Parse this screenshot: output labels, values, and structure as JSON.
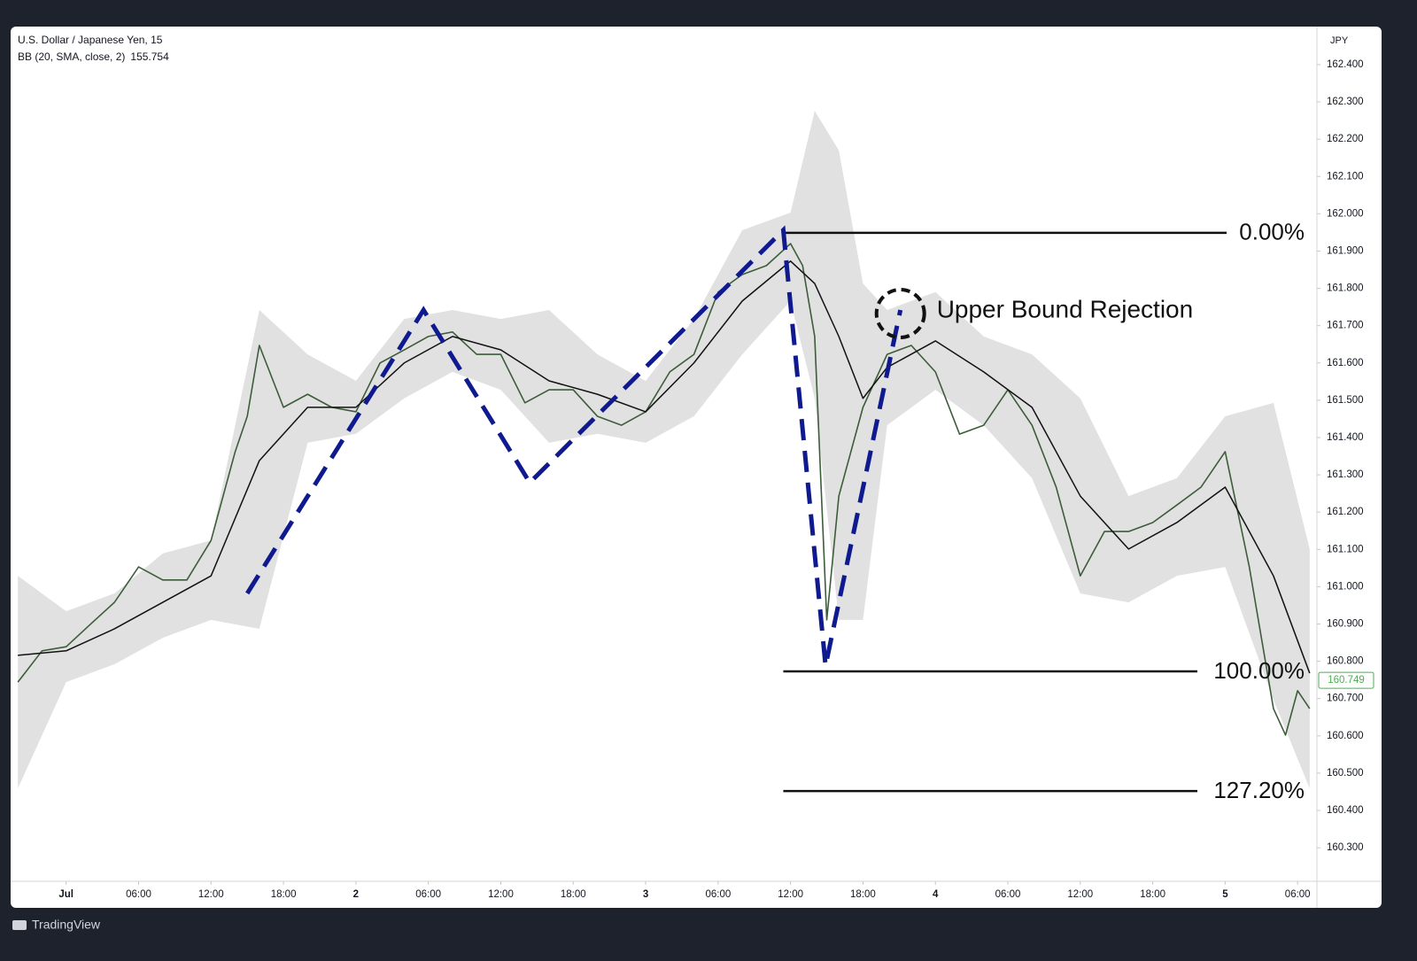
{
  "chart_data": {
    "type": "line",
    "title": "U.S. Dollar / Japanese Yen, 15",
    "indicator": "BB (20, SMA, close, 2)",
    "indicator_value": 155.754,
    "y_unit": "JPY",
    "last_price": 160.749,
    "brand": "TradingView",
    "grid": false,
    "xlim": [
      -4.6,
      103.6
    ],
    "ylim": [
      160.21,
      162.502
    ],
    "xticks": [
      {
        "value": 0,
        "label": "Jul"
      },
      {
        "value": 6,
        "label": "06:00"
      },
      {
        "value": 12,
        "label": "12:00"
      },
      {
        "value": 18,
        "label": "18:00"
      },
      {
        "value": 24,
        "label": "2"
      },
      {
        "value": 30,
        "label": "06:00"
      },
      {
        "value": 36,
        "label": "12:00"
      },
      {
        "value": 42,
        "label": "18:00"
      },
      {
        "value": 48,
        "label": "3"
      },
      {
        "value": 54,
        "label": "06:00"
      },
      {
        "value": 60,
        "label": "12:00"
      },
      {
        "value": 66,
        "label": "18:00"
      },
      {
        "value": 72,
        "label": "4"
      },
      {
        "value": 78,
        "label": "06:00"
      },
      {
        "value": 84,
        "label": "12:00"
      },
      {
        "value": 90,
        "label": "18:00"
      },
      {
        "value": 96,
        "label": "5"
      },
      {
        "value": 102,
        "label": "06:00"
      }
    ],
    "yticks": [
      {
        "value": 160.3,
        "label": "160.300"
      },
      {
        "value": 160.4,
        "label": "160.400"
      },
      {
        "value": 160.5,
        "label": "160.500"
      },
      {
        "value": 160.6,
        "label": "160.600"
      },
      {
        "value": 160.7,
        "label": "160.700"
      },
      {
        "value": 160.8,
        "label": "160.800"
      },
      {
        "value": 160.9,
        "label": "160.900"
      },
      {
        "value": 161.0,
        "label": "161.000"
      },
      {
        "value": 161.1,
        "label": "161.100"
      },
      {
        "value": 161.2,
        "label": "161.200"
      },
      {
        "value": 161.3,
        "label": "161.300"
      },
      {
        "value": 161.4,
        "label": "161.400"
      },
      {
        "value": 161.5,
        "label": "161.500"
      },
      {
        "value": 161.6,
        "label": "161.600"
      },
      {
        "value": 161.7,
        "label": "161.700"
      },
      {
        "value": 161.8,
        "label": "161.800"
      },
      {
        "value": 161.9,
        "label": "161.900"
      },
      {
        "value": 162.0,
        "label": "162.000"
      },
      {
        "value": 162.1,
        "label": "162.100"
      },
      {
        "value": 162.2,
        "label": "162.200"
      },
      {
        "value": 162.3,
        "label": "162.300"
      },
      {
        "value": 162.4,
        "label": "162.400"
      }
    ],
    "band": {
      "color": "#e1e1e1",
      "x": [
        -4,
        0,
        4,
        8,
        12,
        16,
        20,
        24,
        28,
        32,
        36,
        40,
        44,
        48,
        52,
        56,
        60,
        62,
        64,
        66,
        68,
        72,
        76,
        80,
        84,
        88,
        92,
        96,
        100,
        103
      ],
      "upper": [
        161.029,
        160.934,
        160.982,
        161.089,
        161.124,
        161.742,
        161.623,
        161.552,
        161.718,
        161.742,
        161.718,
        161.742,
        161.623,
        161.552,
        161.718,
        161.956,
        162.003,
        162.276,
        162.17,
        161.813,
        161.742,
        161.79,
        161.671,
        161.623,
        161.505,
        161.243,
        161.291,
        161.457,
        161.493,
        161.101
      ],
      "lower": [
        160.459,
        160.744,
        160.792,
        160.863,
        160.911,
        160.887,
        161.386,
        161.41,
        161.505,
        161.576,
        161.528,
        161.386,
        161.41,
        161.386,
        161.457,
        161.623,
        161.766,
        161.505,
        160.911,
        160.911,
        161.433,
        161.528,
        161.433,
        161.291,
        160.982,
        160.958,
        161.029,
        161.053,
        160.697,
        160.459
      ]
    },
    "series": [
      {
        "color": "#3d5c3a",
        "width": 1.6,
        "x": [
          -4,
          -2,
          0,
          2,
          4,
          6,
          8,
          10,
          12,
          14,
          15,
          16,
          18,
          20,
          22,
          24,
          26,
          28,
          30,
          32,
          34,
          36,
          38,
          40,
          42,
          44,
          46,
          48,
          50,
          52,
          54,
          56,
          58,
          60,
          61,
          62,
          63,
          64,
          66,
          68,
          70,
          72,
          74,
          76,
          78,
          80,
          82,
          84,
          86,
          88,
          90,
          92,
          94,
          96,
          98,
          100,
          101,
          102,
          103
        ],
        "values": [
          160.744,
          160.828,
          160.839,
          160.899,
          160.958,
          161.053,
          161.018,
          161.018,
          161.124,
          161.362,
          161.457,
          161.647,
          161.481,
          161.516,
          161.481,
          161.469,
          161.6,
          161.635,
          161.671,
          161.683,
          161.623,
          161.623,
          161.493,
          161.528,
          161.528,
          161.457,
          161.433,
          161.469,
          161.576,
          161.623,
          161.79,
          161.837,
          161.861,
          161.92,
          161.861,
          161.671,
          160.911,
          161.243,
          161.481,
          161.623,
          161.647,
          161.576,
          161.409,
          161.433,
          161.528,
          161.433,
          161.267,
          161.029,
          161.148,
          161.148,
          161.172,
          161.219,
          161.267,
          161.362,
          161.053,
          160.673,
          160.602,
          160.721,
          160.673
        ]
      },
      {
        "color": "#111111",
        "width": 1.5,
        "x": [
          -4,
          0,
          4,
          8,
          12,
          16,
          20,
          24,
          28,
          32,
          36,
          40,
          44,
          48,
          52,
          56,
          60,
          62,
          64,
          66,
          68,
          72,
          76,
          80,
          84,
          88,
          92,
          96,
          100,
          103
        ],
        "values": [
          160.816,
          160.828,
          160.887,
          160.958,
          161.029,
          161.338,
          161.481,
          161.481,
          161.6,
          161.671,
          161.635,
          161.552,
          161.516,
          161.469,
          161.6,
          161.766,
          161.873,
          161.813,
          161.671,
          161.505,
          161.588,
          161.659,
          161.576,
          161.481,
          161.243,
          161.101,
          161.172,
          161.267,
          161.029,
          160.768
        ]
      }
    ],
    "zigzag": {
      "color": "#0f1a8f",
      "x": [
        15.0,
        29.6,
        38.4,
        59.4,
        62.9,
        69.1
      ],
      "values": [
        160.982,
        161.742,
        161.279,
        161.956,
        160.788,
        161.742
      ]
    },
    "fib": {
      "x_start": 59.4,
      "levels": [
        {
          "label": "0.00%",
          "value": 161.949
        },
        {
          "label": "100.00%",
          "value": 160.773
        },
        {
          "label": "127.20%",
          "value": 160.452
        }
      ]
    },
    "annotation": {
      "text": "Upper Bound Rejection",
      "x": 69.1,
      "value": 161.742
    }
  }
}
